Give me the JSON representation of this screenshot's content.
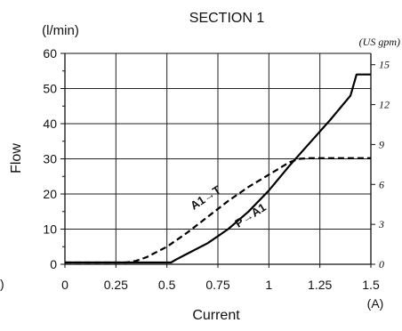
{
  "chart_data": {
    "type": "line",
    "title": "SECTION 1",
    "xlabel": "Current",
    "x_unit": "(A)",
    "ylabel": "Flow",
    "y_unit": "(l/min)",
    "y2_unit": "(US gpm)",
    "xlim": [
      0,
      1.5
    ],
    "ylim": [
      0,
      60
    ],
    "y2lim": [
      0,
      15.85
    ],
    "xticks": [
      "0",
      "0.25",
      "0.5",
      "0.75",
      "1",
      "1.25",
      "1.5"
    ],
    "xtick_values": [
      0,
      0.25,
      0.5,
      0.75,
      1,
      1.25,
      1.5
    ],
    "yticks": [
      "0",
      "10",
      "20",
      "30",
      "40",
      "50",
      "60"
    ],
    "ytick_values": [
      0,
      10,
      20,
      30,
      40,
      50,
      60
    ],
    "y2ticks": [
      "0",
      "3",
      "6",
      "9",
      "12",
      "15"
    ],
    "y2tick_values": [
      0,
      3,
      6,
      9,
      12,
      15
    ],
    "grid": true,
    "series": [
      {
        "name": "P→A1",
        "style": "solid",
        "color": "#000000",
        "x": [
          0,
          0.52,
          0.55,
          0.6,
          0.7,
          0.8,
          0.9,
          1.0,
          1.1,
          1.2,
          1.3,
          1.4,
          1.43,
          1.5
        ],
        "y": [
          0.5,
          0.5,
          1.5,
          3,
          6,
          10,
          15,
          21,
          28,
          34.5,
          41,
          48,
          54,
          54
        ]
      },
      {
        "name": "A1→T",
        "style": "dashed",
        "color": "#000000",
        "x": [
          0,
          0.3,
          0.35,
          0.4,
          0.5,
          0.6,
          0.7,
          0.8,
          0.9,
          1.0,
          1.1,
          1.15,
          1.2,
          1.5
        ],
        "y": [
          0.5,
          0.5,
          1,
          2,
          5,
          9,
          13.5,
          18,
          22,
          25.5,
          29,
          30,
          30.2,
          30.2
        ]
      }
    ],
    "annotations": [
      {
        "text": "A1→T",
        "x": 0.7,
        "y": 18
      },
      {
        "text": "P→A1",
        "x": 0.92,
        "y": 13
      }
    ]
  },
  "left_edge_fragment": ")"
}
